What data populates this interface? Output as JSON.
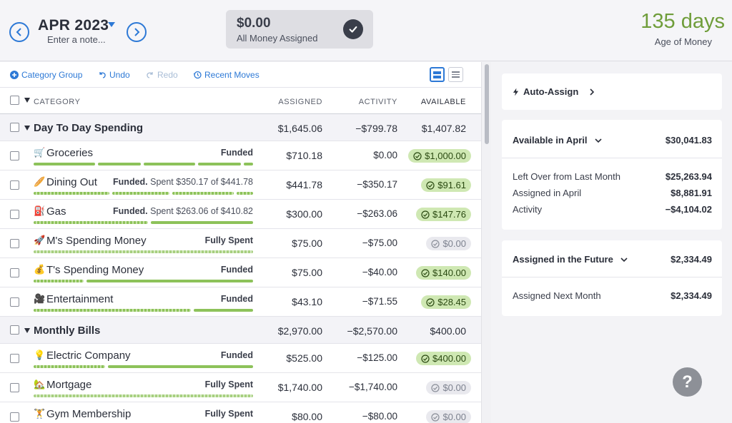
{
  "header": {
    "month": "APR 2023",
    "note_placeholder": "Enter a note...",
    "ready_amount": "$0.00",
    "ready_label": "All Money Assigned",
    "age_of_money_value": "135 days",
    "age_of_money_label": "Age of Money"
  },
  "toolbar": {
    "category_group": "Category Group",
    "undo": "Undo",
    "redo": "Redo",
    "recent_moves": "Recent Moves"
  },
  "columns": {
    "category": "CATEGORY",
    "assigned": "ASSIGNED",
    "activity": "ACTIVITY",
    "available": "AVAILABLE"
  },
  "groups": [
    {
      "name": "Day To Day Spending",
      "assigned": "$1,645.06",
      "activity": "−$799.78",
      "available": "$1,407.82",
      "categories": [
        {
          "emoji": "🛒",
          "name": "Groceries",
          "status_bold": "Funded",
          "status_rest": "",
          "assigned": "$710.18",
          "activity": "$0.00",
          "available": "$1,000.00",
          "pill": "green"
        },
        {
          "emoji": "🥖",
          "name": "Dining Out",
          "status_bold": "Funded.",
          "status_rest": " Spent $350.17 of $441.78",
          "assigned": "$441.78",
          "activity": "−$350.17",
          "available": "$91.61",
          "pill": "green"
        },
        {
          "emoji": "⛽",
          "name": "Gas",
          "status_bold": "Funded.",
          "status_rest": " Spent $263.06 of $410.82",
          "assigned": "$300.00",
          "activity": "−$263.06",
          "available": "$147.76",
          "pill": "green"
        },
        {
          "emoji": "🚀",
          "name": "M's Spending Money",
          "status_bold": "Fully Spent",
          "status_rest": "",
          "assigned": "$75.00",
          "activity": "−$75.00",
          "available": "$0.00",
          "pill": "gray"
        },
        {
          "emoji": "💰",
          "name": "T's Spending Money",
          "status_bold": "Funded",
          "status_rest": "",
          "assigned": "$75.00",
          "activity": "−$40.00",
          "available": "$140.00",
          "pill": "green"
        },
        {
          "emoji": "🎥",
          "name": "Entertainment",
          "status_bold": "Funded",
          "status_rest": "",
          "assigned": "$43.10",
          "activity": "−$71.55",
          "available": "$28.45",
          "pill": "green"
        }
      ]
    },
    {
      "name": "Monthly Bills",
      "assigned": "$2,970.00",
      "activity": "−$2,570.00",
      "available": "$400.00",
      "categories": [
        {
          "emoji": "💡",
          "name": "Electric Company",
          "status_bold": "Funded",
          "status_rest": "",
          "assigned": "$525.00",
          "activity": "−$125.00",
          "available": "$400.00",
          "pill": "green"
        },
        {
          "emoji": "🏡",
          "name": "Mortgage",
          "status_bold": "Fully Spent",
          "status_rest": "",
          "assigned": "$1,740.00",
          "activity": "−$1,740.00",
          "available": "$0.00",
          "pill": "gray"
        },
        {
          "emoji": "🏋",
          "name": "Gym Membership",
          "status_bold": "Fully Spent",
          "status_rest": "",
          "assigned": "$80.00",
          "activity": "−$80.00",
          "available": "$0.00",
          "pill": "gray"
        }
      ]
    }
  ],
  "side": {
    "auto_assign": "Auto-Assign",
    "available_title": "Available in April",
    "available_total": "$30,041.83",
    "available_rows": [
      {
        "label": "Left Over from Last Month",
        "value": "$25,263.94"
      },
      {
        "label": "Assigned in April",
        "value": "$8,881.91"
      },
      {
        "label": "Activity",
        "value": "−$4,104.02"
      }
    ],
    "future_title": "Assigned in the Future",
    "future_total": "$2,334.49",
    "future_rows": [
      {
        "label": "Assigned Next Month",
        "value": "$2,334.49"
      }
    ],
    "help": "?"
  },
  "colors": {
    "accent": "#2d79d6",
    "age_green": "#6f9d3a",
    "funded_bar": "#8dc25a",
    "pill_green": "#cfe8b3",
    "pill_gray": "#e9e9ee"
  }
}
